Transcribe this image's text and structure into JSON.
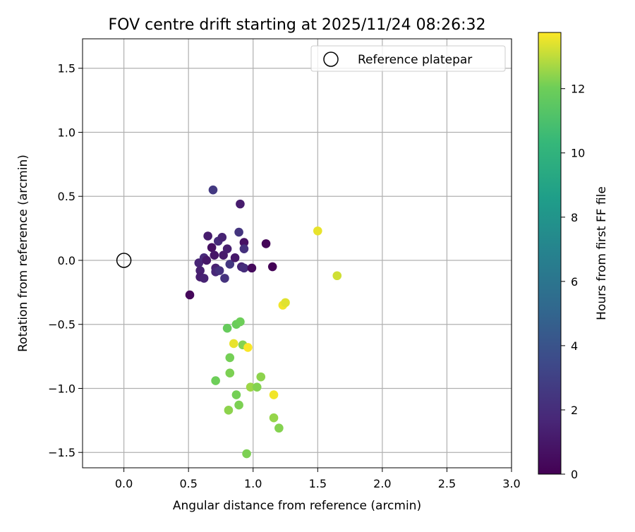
{
  "chart_data": {
    "type": "scatter",
    "title": "FOV centre drift starting at 2025/11/24 08:26:32",
    "xlabel": "Angular distance from reference (arcmin)",
    "ylabel": "Rotation from reference (arcmin)",
    "xlim": [
      -0.32,
      3.0
    ],
    "ylim": [
      -1.62,
      1.73
    ],
    "xticks": [
      0.0,
      0.5,
      1.0,
      1.5,
      2.0,
      2.5,
      3.0
    ],
    "xtick_labels": [
      "0.0",
      "0.5",
      "1.0",
      "1.5",
      "2.0",
      "2.5",
      "3.0"
    ],
    "yticks": [
      -1.5,
      -1.0,
      -0.5,
      0.0,
      0.5,
      1.0,
      1.5
    ],
    "ytick_labels": [
      "−1.5",
      "−1.0",
      "−0.5",
      "0.0",
      "0.5",
      "1.0",
      "1.5"
    ],
    "grid": true,
    "legend": {
      "position": "top-right",
      "entries": [
        "Reference platepar"
      ]
    },
    "reference_point": {
      "x": 0.0,
      "y": 0.0,
      "label": "Reference platepar"
    },
    "colorbar": {
      "label": "Hours from first FF file",
      "colormap": "viridis",
      "range": [
        0,
        13.75
      ],
      "ticks": [
        0,
        2,
        4,
        6,
        8,
        10,
        12
      ],
      "tick_labels": [
        "0",
        "2",
        "4",
        "6",
        "8",
        "10",
        "12"
      ]
    },
    "points": [
      {
        "x": 0.51,
        "y": -0.27,
        "hours": 0.3
      },
      {
        "x": 0.58,
        "y": -0.02,
        "hours": 1.6
      },
      {
        "x": 0.59,
        "y": -0.08,
        "hours": 1.4
      },
      {
        "x": 0.59,
        "y": -0.13,
        "hours": 1.3
      },
      {
        "x": 0.62,
        "y": 0.02,
        "hours": 1.8
      },
      {
        "x": 0.62,
        "y": -0.14,
        "hours": 1.5
      },
      {
        "x": 0.64,
        "y": 0.0,
        "hours": 1.0
      },
      {
        "x": 0.65,
        "y": 0.19,
        "hours": 1.2
      },
      {
        "x": 0.68,
        "y": 0.1,
        "hours": 0.6
      },
      {
        "x": 0.69,
        "y": 0.55,
        "hours": 2.6
      },
      {
        "x": 0.7,
        "y": 0.04,
        "hours": 0.9
      },
      {
        "x": 0.71,
        "y": -0.06,
        "hours": 1.4
      },
      {
        "x": 0.71,
        "y": -0.09,
        "hours": 1.7
      },
      {
        "x": 0.73,
        "y": 0.15,
        "hours": 1.9
      },
      {
        "x": 0.74,
        "y": -0.08,
        "hours": 2.2
      },
      {
        "x": 0.76,
        "y": 0.18,
        "hours": 1.5
      },
      {
        "x": 0.77,
        "y": 0.04,
        "hours": 1.1
      },
      {
        "x": 0.78,
        "y": -0.14,
        "hours": 2.3
      },
      {
        "x": 0.8,
        "y": 0.09,
        "hours": 1.3
      },
      {
        "x": 0.82,
        "y": -0.03,
        "hours": 2.5
      },
      {
        "x": 0.86,
        "y": 0.02,
        "hours": 1.0
      },
      {
        "x": 0.89,
        "y": 0.22,
        "hours": 2.4
      },
      {
        "x": 0.9,
        "y": 0.44,
        "hours": 1.2
      },
      {
        "x": 0.91,
        "y": -0.05,
        "hours": 1.6
      },
      {
        "x": 0.93,
        "y": 0.14,
        "hours": 0.7
      },
      {
        "x": 0.93,
        "y": 0.09,
        "hours": 2.2
      },
      {
        "x": 0.93,
        "y": -0.06,
        "hours": 2.0
      },
      {
        "x": 0.99,
        "y": -0.06,
        "hours": 0.4
      },
      {
        "x": 1.1,
        "y": 0.13,
        "hours": 0.2
      },
      {
        "x": 1.15,
        "y": -0.05,
        "hours": 0.1
      },
      {
        "x": 1.5,
        "y": 0.23,
        "hours": 13.5
      },
      {
        "x": 1.65,
        "y": -0.12,
        "hours": 13.2
      },
      {
        "x": 1.23,
        "y": -0.35,
        "hours": 13.6
      },
      {
        "x": 1.25,
        "y": -0.33,
        "hours": 13.4
      },
      {
        "x": 0.8,
        "y": -0.53,
        "hours": 11.8
      },
      {
        "x": 0.87,
        "y": -0.5,
        "hours": 11.9
      },
      {
        "x": 0.9,
        "y": -0.48,
        "hours": 12.0
      },
      {
        "x": 0.85,
        "y": -0.65,
        "hours": 13.5
      },
      {
        "x": 0.92,
        "y": -0.66,
        "hours": 12.3
      },
      {
        "x": 0.96,
        "y": -0.68,
        "hours": 13.7
      },
      {
        "x": 0.82,
        "y": -0.76,
        "hours": 12.1
      },
      {
        "x": 0.82,
        "y": -0.88,
        "hours": 12.2
      },
      {
        "x": 0.71,
        "y": -0.94,
        "hours": 12.0
      },
      {
        "x": 1.06,
        "y": -0.91,
        "hours": 12.4
      },
      {
        "x": 0.98,
        "y": -0.99,
        "hours": 12.6
      },
      {
        "x": 1.03,
        "y": -0.99,
        "hours": 12.3
      },
      {
        "x": 0.87,
        "y": -1.05,
        "hours": 12.1
      },
      {
        "x": 1.16,
        "y": -1.05,
        "hours": 13.6
      },
      {
        "x": 0.89,
        "y": -1.13,
        "hours": 12.2
      },
      {
        "x": 0.81,
        "y": -1.17,
        "hours": 12.4
      },
      {
        "x": 1.16,
        "y": -1.23,
        "hours": 12.5
      },
      {
        "x": 1.2,
        "y": -1.31,
        "hours": 12.3
      },
      {
        "x": 0.95,
        "y": -1.51,
        "hours": 12.2
      }
    ]
  }
}
